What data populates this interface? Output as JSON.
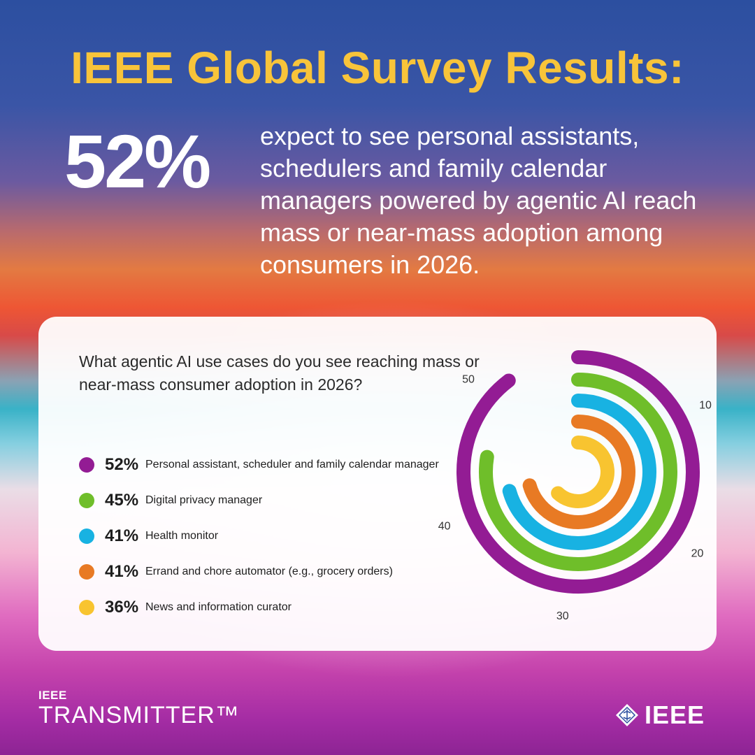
{
  "header": {
    "title": "IEEE Global Survey Results:",
    "hero_stat": "52%",
    "hero_text": "expect to see personal assistants, schedulers and family calendar managers powered by agentic AI reach mass or near-mass adoption among consumers in 2026."
  },
  "card": {
    "question": "What agentic AI use cases do you see reaching mass or near-mass consumer adoption in 2026?"
  },
  "chart_data": {
    "type": "radial-bar",
    "title": "What agentic AI use cases do you see reaching mass or near-mass consumer adoption in 2026?",
    "unit": "%",
    "categories": [
      "Personal assistant, scheduler and family calendar manager",
      "Digital privacy manager",
      "Health monitor",
      "Errand and chore automator (e.g., grocery orders)",
      "News and information curator"
    ],
    "values": [
      52,
      45,
      41,
      41,
      36
    ],
    "value_labels": [
      "52%",
      "45%",
      "41%",
      "41%",
      "36%"
    ],
    "colors": [
      "#931c94",
      "#6fbe2a",
      "#18b2e2",
      "#e87a24",
      "#f8c430"
    ],
    "axis_ticks": [
      {
        "value": 10,
        "label": "10"
      },
      {
        "value": 20,
        "label": "20"
      },
      {
        "value": 30,
        "label": "30"
      },
      {
        "value": 40,
        "label": "40"
      },
      {
        "value": 50,
        "label": "50"
      }
    ],
    "axis_max": 58,
    "start_angle": "top, clockwise"
  },
  "footer": {
    "brand_small": "IEEE",
    "brand_large": "TRANSMITTER™",
    "logo_text": "IEEE"
  }
}
